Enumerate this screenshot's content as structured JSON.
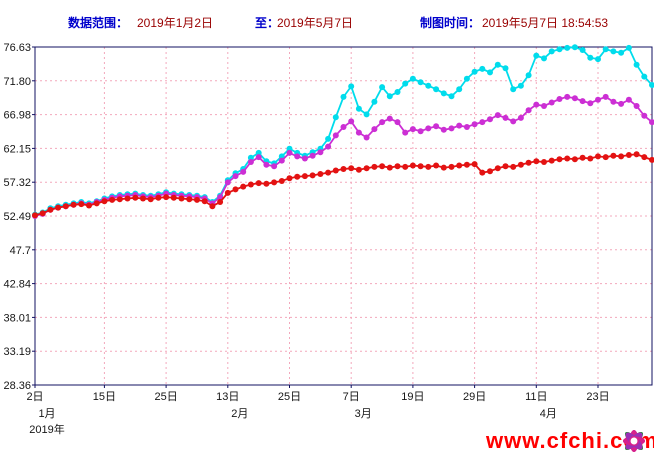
{
  "header": {
    "range_label": "数据范围：",
    "range_start": "2019年1月2日",
    "to_label": "至：",
    "range_end": "2019年5月7日",
    "plot_time_label": "制图时间：",
    "plot_time": "2019年5月7日 18:54:53"
  },
  "watermark": {
    "url_text": "www.cfchi.com",
    "color": "#ff0000"
  },
  "chart_data": {
    "type": "line",
    "title": "",
    "grid": true,
    "legend_position": "none",
    "ylim": [
      28.36,
      76.63
    ],
    "y_tick_labels": [
      "76.63",
      "71.80",
      "66.98",
      "62.15",
      "57.32",
      "52.49",
      "47.7",
      "42.84",
      "38.01",
      "33.19",
      "28.36"
    ],
    "y_tick_values": [
      76.63,
      71.8,
      66.98,
      62.15,
      57.32,
      52.49,
      47.67,
      42.84,
      38.01,
      33.19,
      28.36
    ],
    "x_tick_labels": [
      "2日",
      "15日",
      "25日",
      "13日",
      "25日",
      "7日",
      "19日",
      "29日",
      "11日",
      "23日"
    ],
    "x_tick_indices": [
      0,
      9,
      17,
      25,
      33,
      41,
      49,
      57,
      65,
      73
    ],
    "month_labels": [
      {
        "label": "1月",
        "index": 0
      },
      {
        "label": "2月",
        "index": 25
      },
      {
        "label": "3月",
        "index": 41
      },
      {
        "label": "4月",
        "index": 65
      }
    ],
    "year_label": "2019年",
    "colors": {
      "grid": "#f3a8bc",
      "axis": "#101060",
      "background": "#ffffff"
    },
    "series": [
      {
        "name": "cyan",
        "color": "#00dcec",
        "values": [
          52.7,
          53.0,
          53.6,
          53.9,
          54.1,
          54.3,
          54.5,
          54.3,
          54.6,
          55.0,
          55.3,
          55.5,
          55.6,
          55.7,
          55.5,
          55.4,
          55.6,
          55.9,
          55.7,
          55.6,
          55.5,
          55.4,
          55.2,
          54.5,
          55.4,
          57.6,
          58.6,
          59.2,
          60.8,
          61.5,
          60.3,
          60.0,
          61.0,
          62.1,
          61.5,
          61.1,
          61.6,
          62.1,
          63.5,
          66.6,
          69.5,
          71.0,
          67.8,
          67.0,
          68.8,
          70.9,
          69.6,
          70.2,
          71.4,
          72.1,
          71.6,
          71.1,
          70.6,
          70.0,
          69.6,
          70.6,
          72.1,
          73.1,
          73.5,
          73.0,
          74.1,
          73.6,
          70.6,
          71.1,
          72.6,
          75.4,
          75.0,
          76.0,
          76.3,
          76.5,
          76.6,
          76.2,
          75.1,
          74.9,
          76.3,
          76.0,
          75.8,
          76.5,
          74.1,
          72.4,
          71.2
        ]
      },
      {
        "name": "magenta",
        "color": "#cc2fd4",
        "values": [
          52.5,
          52.8,
          53.4,
          53.7,
          53.9,
          54.1,
          54.3,
          54.1,
          54.5,
          54.8,
          55.1,
          55.3,
          55.4,
          55.5,
          55.3,
          55.2,
          55.4,
          55.7,
          55.5,
          55.4,
          55.3,
          55.2,
          55.0,
          54.3,
          55.2,
          57.3,
          58.2,
          58.8,
          60.2,
          60.9,
          59.8,
          59.6,
          60.4,
          61.5,
          61.0,
          60.7,
          61.1,
          61.6,
          62.4,
          64.0,
          65.2,
          66.0,
          64.4,
          63.7,
          64.9,
          65.9,
          66.4,
          65.9,
          64.4,
          64.9,
          64.6,
          65.0,
          65.3,
          64.8,
          65.0,
          65.4,
          65.2,
          65.6,
          65.9,
          66.3,
          66.9,
          66.5,
          66.0,
          66.5,
          67.6,
          68.4,
          68.2,
          68.7,
          69.2,
          69.5,
          69.3,
          68.9,
          68.6,
          69.1,
          69.5,
          68.8,
          68.5,
          69.1,
          68.2,
          66.8,
          65.9
        ]
      },
      {
        "name": "red",
        "color": "#e31212",
        "values": [
          52.6,
          52.9,
          53.4,
          53.7,
          53.9,
          54.1,
          54.2,
          54.0,
          54.3,
          54.6,
          54.8,
          54.9,
          55.0,
          55.1,
          55.0,
          54.9,
          55.1,
          55.2,
          55.1,
          55.0,
          54.9,
          54.8,
          54.6,
          53.9,
          54.5,
          55.8,
          56.3,
          56.7,
          57.0,
          57.2,
          57.1,
          57.3,
          57.5,
          57.9,
          58.1,
          58.2,
          58.3,
          58.5,
          58.7,
          59.0,
          59.2,
          59.3,
          59.1,
          59.3,
          59.5,
          59.6,
          59.4,
          59.6,
          59.5,
          59.7,
          59.6,
          59.5,
          59.7,
          59.4,
          59.5,
          59.7,
          59.8,
          59.9,
          58.7,
          58.9,
          59.3,
          59.6,
          59.5,
          59.8,
          60.1,
          60.3,
          60.2,
          60.4,
          60.6,
          60.7,
          60.6,
          60.8,
          60.7,
          61.0,
          60.9,
          61.1,
          61.0,
          61.2,
          61.3,
          60.9,
          60.5
        ]
      }
    ]
  }
}
